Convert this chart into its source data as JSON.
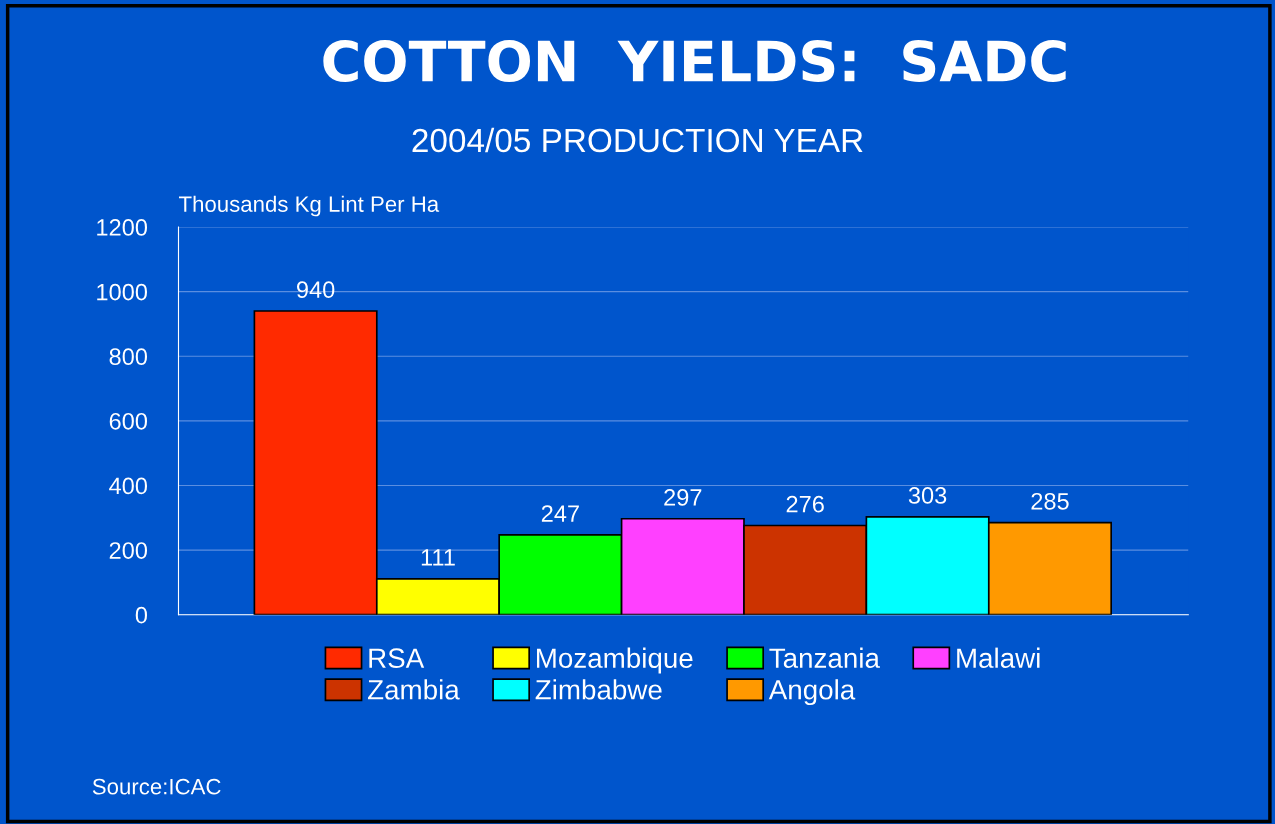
{
  "chart_data": {
    "type": "bar",
    "title": "COTTON  YIELDS:  SADC",
    "subtitle": "2004/05 PRODUCTION YEAR",
    "ylabel": "Thousands Kg Lint Per Ha",
    "categories": [
      null,
      null,
      null,
      null,
      null,
      null,
      null
    ],
    "series": [
      {
        "name": "RSA",
        "color": "#ff2a00",
        "values": [
          940,
          null,
          null,
          null,
          null,
          null,
          null
        ]
      },
      {
        "name": "Mozambique",
        "color": "#ffff00",
        "values": [
          null,
          111,
          null,
          null,
          null,
          null,
          null
        ]
      },
      {
        "name": "Tanzania",
        "color": "#00ff00",
        "values": [
          null,
          null,
          247,
          null,
          null,
          null,
          null
        ]
      },
      {
        "name": "Malawi",
        "color": "#ff40ff",
        "values": [
          null,
          null,
          null,
          297,
          null,
          null,
          null
        ]
      },
      {
        "name": "Zambia",
        "color": "#cc3300",
        "values": [
          null,
          null,
          null,
          null,
          276,
          null,
          null
        ]
      },
      {
        "name": "Zimbabwe",
        "color": "#00ffff",
        "values": [
          null,
          null,
          null,
          null,
          null,
          303,
          null
        ]
      },
      {
        "name": "Angola",
        "color": "#ff9900",
        "values": [
          null,
          null,
          null,
          null,
          null,
          null,
          285
        ]
      }
    ],
    "ylim": [
      0,
      1200
    ],
    "yticks": [
      0,
      200,
      400,
      600,
      800,
      1000,
      1200
    ],
    "grid": "y",
    "legend": "bottom",
    "data_labels": true,
    "annotations": [
      "Source:ICAC"
    ]
  }
}
